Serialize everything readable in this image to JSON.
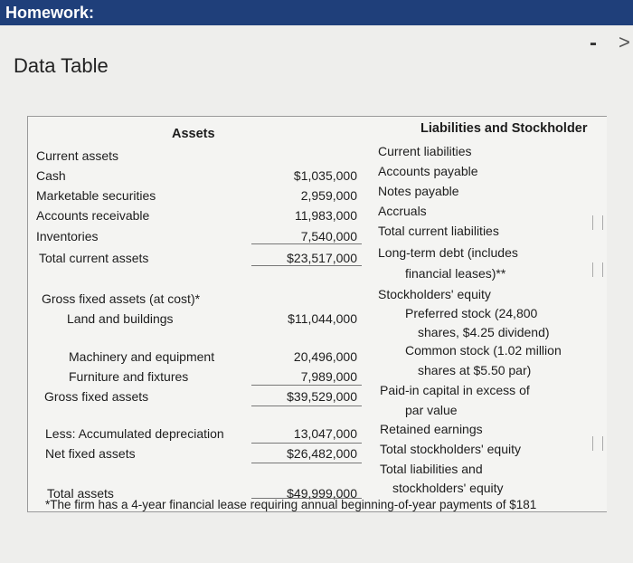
{
  "header": {
    "title": "Homework:"
  },
  "title": "Data Table",
  "table": {
    "assets_heading": "Assets",
    "liabilities_heading": "Liabilities and Stockholder",
    "assets": [
      {
        "label": "Current assets"
      },
      {
        "label": "Cash",
        "value": "$1,035,000"
      },
      {
        "label": "Marketable securities",
        "value": "2,959,000"
      },
      {
        "label": "Accounts receivable",
        "value": "11,983,000"
      },
      {
        "label": "Inventories",
        "value": "7,540,000"
      },
      {
        "label": "Total current assets",
        "value": "$23,517,000"
      },
      {
        "label": "Gross fixed assets (at cost)*"
      },
      {
        "label": "Land and buildings",
        "value": "$11,044,000"
      },
      {
        "label": "Machinery and equipment",
        "value": "20,496,000"
      },
      {
        "label": "Furniture and fixtures",
        "value": "7,989,000"
      },
      {
        "label": "Gross fixed assets",
        "value": "$39,529,000"
      },
      {
        "label": "Less: Accumulated depreciation",
        "value": "13,047,000"
      },
      {
        "label": "Net fixed assets",
        "value": "$26,482,000"
      },
      {
        "label": "Total assets",
        "value": "$49,999,000"
      }
    ],
    "liabilities": [
      "Current liabilities",
      "Accounts payable",
      "Notes payable",
      "Accruals",
      "Total current liabilities",
      "Long-term debt (includes",
      "financial leases)**",
      "Stockholders' equity",
      "Preferred stock (24,800",
      "shares, $4.25 dividend)",
      "Common stock (1.02 million",
      "shares at $5.50 par)",
      "Paid-in capital in excess of",
      "par value",
      "Retained earnings",
      "Total stockholders' equity",
      "Total liabilities and",
      "stockholders' equity"
    ],
    "footnote": "*The firm has a 4-year financial lease requiring annual beginning-of-year payments of $181"
  }
}
